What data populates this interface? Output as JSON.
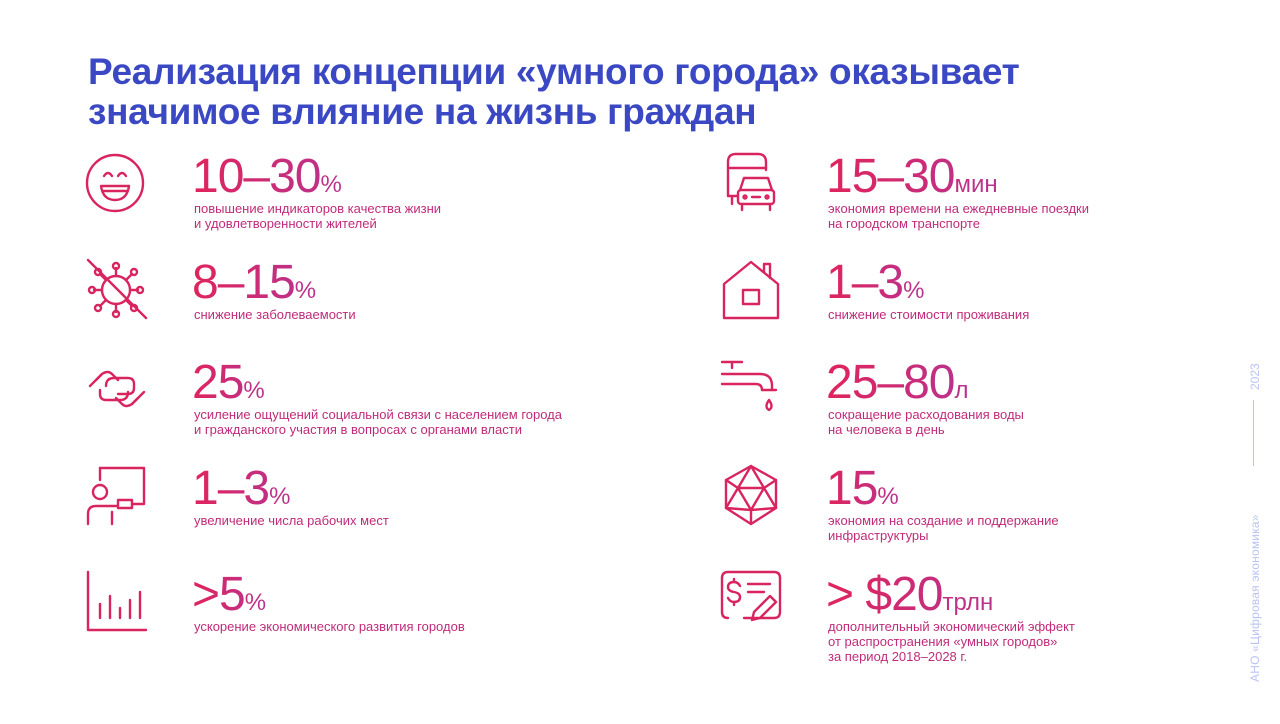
{
  "title": {
    "line1": "Реализация концепции «умного города» оказывает",
    "line2": "значимое влияние на жизнь граждан"
  },
  "left": [
    {
      "icon": "smiley-icon",
      "value": "10–30",
      "unit": "%",
      "desc": [
        "повышение индикаторов качества жизни",
        "и удовлетворенности жителей"
      ]
    },
    {
      "icon": "virus-crossed-icon",
      "value": "8–15",
      "unit": "%",
      "desc": [
        "снижение заболеваемости"
      ]
    },
    {
      "icon": "handshake-icon",
      "value": "25",
      "unit": "%",
      "desc": [
        "усиление ощущений социальной связи с населением города",
        "и гражданского участия в вопросах с органами власти"
      ]
    },
    {
      "icon": "worker-at-board-icon",
      "value": "1–3",
      "unit": "%",
      "desc": [
        "увеличение числа рабочих мест"
      ]
    },
    {
      "icon": "bar-chart-icon",
      "value": ">5",
      "unit": "%",
      "desc": [
        "ускорение экономического развития городов"
      ]
    }
  ],
  "right": [
    {
      "icon": "bus-car-icon",
      "value": "15–30",
      "unit": "мин",
      "desc": [
        "экономия времени на ежедневные поездки",
        "на городском транспорте"
      ]
    },
    {
      "icon": "house-icon",
      "value": "1–3",
      "unit": "%",
      "desc": [
        "снижение стоимости проживания"
      ]
    },
    {
      "icon": "water-tap-icon",
      "value": "25–80",
      "unit": "л",
      "desc": [
        "сокращение расходования воды",
        "на человека в день"
      ]
    },
    {
      "icon": "polyhedron-icon",
      "value": "15",
      "unit": "%",
      "desc": [
        "экономия на создание и поддержание",
        "инфраструктуры"
      ]
    },
    {
      "icon": "invoice-dollar-icon",
      "value": "> $20",
      "unit": "трлн",
      "desc": [
        "дополнительный экономический эффект",
        "от распространения «умных городов»",
        "за период 2018–2028 г."
      ]
    }
  ],
  "side": {
    "org": "АНО «Цифровая экономика»",
    "year": "2023"
  },
  "colors": {
    "title": "#3b48c4",
    "accent_start": "#e0245c",
    "accent_end": "#b8338f",
    "side": "#b9c4f0"
  }
}
